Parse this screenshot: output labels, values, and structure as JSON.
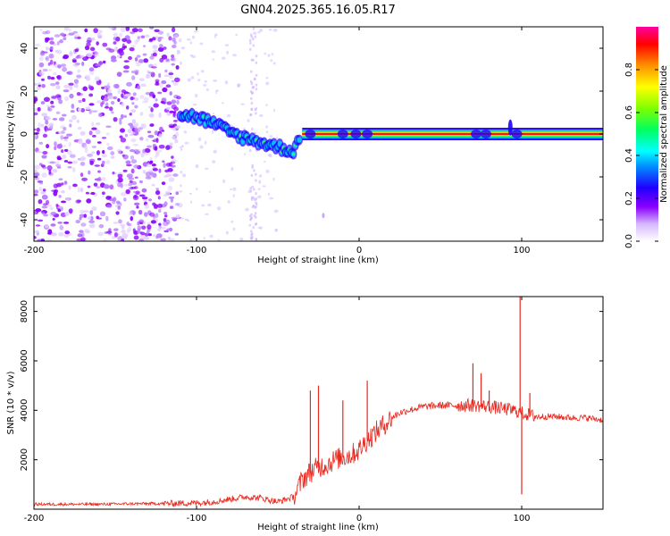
{
  "title": "GN04.2025.365.16.05.R17",
  "chart_data": [
    {
      "type": "heatmap",
      "name": "spectrogram",
      "xlabel": "Height of straight line (km)",
      "ylabel": "Frequency (Hz)",
      "xlim": [
        -200,
        150
      ],
      "ylim": [
        -50,
        50
      ],
      "xticks": [
        -200,
        -100,
        0,
        100
      ],
      "yticks": [
        -40,
        -20,
        0,
        20,
        40
      ],
      "colorbar": {
        "label": "Normalized spectral amplitude",
        "range": [
          0,
          1
        ],
        "ticks": [
          "0.0",
          "0.2",
          "0.4",
          "0.6",
          "0.8"
        ],
        "colors": [
          "#ffffff",
          "#d6b8ff",
          "#8a00ff",
          "#2000ff",
          "#0090ff",
          "#00ffff",
          "#00ff60",
          "#80ff00",
          "#ffff00",
          "#ff9000",
          "#ff0000",
          "#ff00a0"
        ]
      },
      "ridge": [
        {
          "x": -110,
          "y": 9,
          "a": 0.35
        },
        {
          "x": -100,
          "y": 8,
          "a": 0.45
        },
        {
          "x": -90,
          "y": 5,
          "a": 0.5
        },
        {
          "x": -80,
          "y": 1,
          "a": 0.55
        },
        {
          "x": -70,
          "y": -2,
          "a": 0.55
        },
        {
          "x": -60,
          "y": -4,
          "a": 0.5
        },
        {
          "x": -50,
          "y": -6,
          "a": 0.45
        },
        {
          "x": -40,
          "y": -8,
          "a": 0.4
        },
        {
          "x": -35,
          "y": 3,
          "a": 0.6
        },
        {
          "x": -20,
          "y": 0,
          "a": 0.85
        },
        {
          "x": -10,
          "y": 2,
          "a": 0.85
        },
        {
          "x": 0,
          "y": 1,
          "a": 0.9
        },
        {
          "x": 10,
          "y": 0,
          "a": 1.0
        },
        {
          "x": 150,
          "y": 0,
          "a": 1.0
        }
      ]
    },
    {
      "type": "line",
      "name": "snr",
      "xlabel": "Height of straight line (km)",
      "ylabel": "SNR (10 * v/v)",
      "xlim": [
        -200,
        150
      ],
      "ylim": [
        0,
        8600
      ],
      "xticks": [
        -200,
        -100,
        0,
        100
      ],
      "yticks": [
        2000,
        4000,
        6000,
        8000
      ],
      "color": "#e8281e",
      "series": [
        {
          "name": "SNR",
          "x": [
            -200,
            -180,
            -160,
            -140,
            -120,
            -100,
            -90,
            -80,
            -70,
            -60,
            -50,
            -40,
            -35,
            -30,
            -25,
            -20,
            -15,
            -10,
            -5,
            0,
            5,
            10,
            15,
            20,
            25,
            30,
            40,
            50,
            60,
            70,
            80,
            90,
            95,
            100,
            105,
            110,
            120,
            130,
            140,
            150
          ],
          "y": [
            200,
            200,
            200,
            220,
            230,
            250,
            300,
            400,
            500,
            450,
            300,
            500,
            1200,
            1500,
            1700,
            1800,
            2000,
            2100,
            2200,
            2400,
            2800,
            3100,
            3400,
            3700,
            3900,
            4000,
            4150,
            4200,
            4200,
            4200,
            4150,
            4050,
            4000,
            3900,
            3800,
            3750,
            3750,
            3700,
            3700,
            3600
          ]
        }
      ],
      "spikes": [
        {
          "x": -30,
          "y": 4800
        },
        {
          "x": -25,
          "y": 5000
        },
        {
          "x": -10,
          "y": 4400
        },
        {
          "x": 5,
          "y": 5200
        },
        {
          "x": 70,
          "y": 5900
        },
        {
          "x": 75,
          "y": 5500
        },
        {
          "x": 80,
          "y": 4800
        },
        {
          "x": 99,
          "y": 8600
        },
        {
          "x": 100,
          "y": 600
        },
        {
          "x": 105,
          "y": 4700
        }
      ]
    }
  ]
}
